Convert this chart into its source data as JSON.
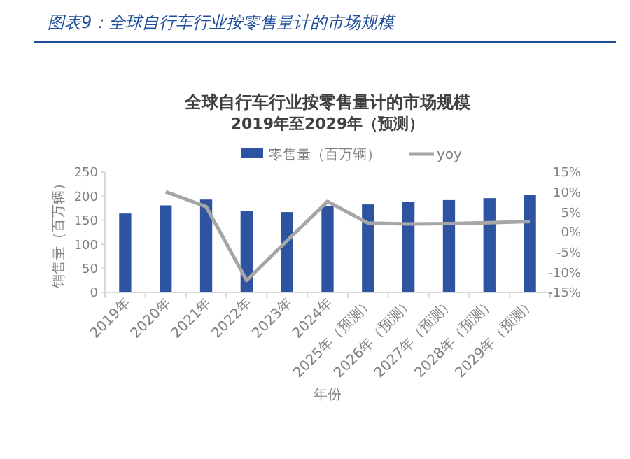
{
  "chart_data": {
    "type": "bar",
    "title": "图表9：全球自行车行业按零售量计的市场规模",
    "subtitle": "全球自行车行业按零售量计的市场规模\n2019年至2029年（预测）",
    "xlabel": "年份",
    "ylabel": "销售量（百万辆）",
    "categories": [
      "2019年",
      "2020年",
      "2021年",
      "2022年",
      "2023年",
      "2024年",
      "2025年（预测）",
      "2026年（预测）",
      "2027年（预测）",
      "2028年（预测）",
      "2029年（预测）"
    ],
    "series": [
      {
        "name": "零售量（百万辆）",
        "color": "#2e54a1",
        "values": [
          164,
          181,
          193,
          170,
          167,
          180,
          183,
          188,
          192,
          196,
          202
        ]
      },
      {
        "name": "yoy",
        "type": "line",
        "axis": "y2",
        "color": "#a6a6a6",
        "values": [
          null,
          10.1,
          6.4,
          -12,
          -2.1,
          7.7,
          2.3,
          2.1,
          2.2,
          2.4,
          2.7
        ]
      }
    ],
    "ylim": [
      0,
      250
    ],
    "yticks": [
      0,
      50,
      100,
      150,
      200,
      250
    ],
    "y2lim": [
      -15,
      15
    ],
    "y2ticks": [
      {
        "value": -15,
        "label": "-15%"
      },
      {
        "value": -10,
        "label": "-10%"
      },
      {
        "value": -5,
        "label": "-5%"
      },
      {
        "value": 0,
        "label": "0%"
      },
      {
        "value": 5,
        "label": "5%"
      },
      {
        "value": 10,
        "label": "10%"
      },
      {
        "value": 15,
        "label": "15%"
      }
    ],
    "legend": "top",
    "grid": false,
    "marker": "none",
    "line_style": "solid"
  }
}
